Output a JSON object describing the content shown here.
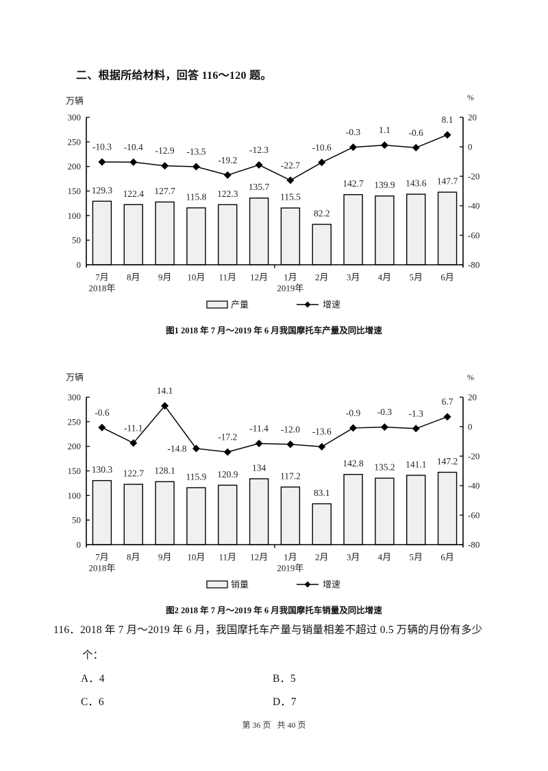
{
  "section_heading": "二、根据所给材料，回答 116～120 题。",
  "chart_data": [
    {
      "type": "bar",
      "combo": "bar+line",
      "title": "图1   2018 年 7 月～2019 年 6 月我国摩托车产量及同比增速",
      "categories": [
        "7月",
        "8月",
        "9月",
        "10月",
        "11月",
        "12月",
        "1月",
        "2月",
        "3月",
        "4月",
        "5月",
        "6月"
      ],
      "year_labels": [
        {
          "index": 0,
          "label": "2018年"
        },
        {
          "index": 6,
          "label": "2019年"
        }
      ],
      "ylabel": "万辆",
      "ylim": [
        0,
        300
      ],
      "yticks": [
        0,
        50,
        100,
        150,
        200,
        250,
        300
      ],
      "y2label": "%",
      "y2lim": [
        -80,
        20
      ],
      "y2ticks": [
        -80,
        -60,
        -40,
        -20,
        0,
        20
      ],
      "grid": false,
      "legend_position": "bottom",
      "series": [
        {
          "name": "产量",
          "type": "bar",
          "axis": "left",
          "values": [
            129.3,
            122.4,
            127.7,
            115.8,
            122.3,
            135.7,
            115.5,
            82.2,
            142.7,
            139.9,
            143.6,
            147.7
          ],
          "labels": [
            "129.3",
            "122.4",
            "127.7",
            "115.8",
            "122.3",
            "135.7",
            "115.5",
            "82.2",
            "142.7",
            "139.9",
            "143.6",
            "147.7"
          ]
        },
        {
          "name": "增速",
          "type": "line",
          "axis": "right",
          "values": [
            -10.3,
            -10.4,
            -12.9,
            -13.5,
            -19.2,
            -12.3,
            -22.7,
            -10.6,
            -0.3,
            1.1,
            -0.6,
            8.1
          ],
          "labels": [
            "-10.3",
            "-10.4",
            "-12.9",
            "-13.5",
            "-19.2",
            "-12.3",
            "-22.7",
            "-10.6",
            "-0.3",
            "1.1",
            "-0.6",
            "8.1"
          ]
        }
      ]
    },
    {
      "type": "bar",
      "combo": "bar+line",
      "title": "图2   2018 年 7 月～2019 年 6 月我国摩托车销量及同比增速",
      "categories": [
        "7月",
        "8月",
        "9月",
        "10月",
        "11月",
        "12月",
        "1月",
        "2月",
        "3月",
        "4月",
        "5月",
        "6月"
      ],
      "year_labels": [
        {
          "index": 0,
          "label": "2018年"
        },
        {
          "index": 6,
          "label": "2019年"
        }
      ],
      "ylabel": "万辆",
      "ylim": [
        0,
        300
      ],
      "yticks": [
        0,
        50,
        100,
        150,
        200,
        250,
        300
      ],
      "y2label": "%",
      "y2lim": [
        -80,
        20
      ],
      "y2ticks": [
        -80,
        -60,
        -40,
        -20,
        0,
        20
      ],
      "grid": false,
      "legend_position": "bottom",
      "series": [
        {
          "name": "销量",
          "type": "bar",
          "axis": "left",
          "values": [
            130.3,
            122.7,
            128.1,
            115.9,
            120.9,
            134,
            117.2,
            83.1,
            142.8,
            135.2,
            141.1,
            147.2
          ],
          "labels": [
            "130.3",
            "122.7",
            "128.1",
            "115.9",
            "120.9",
            "134",
            "117.2",
            "83.1",
            "142.8",
            "135.2",
            "141.1",
            "147.2"
          ]
        },
        {
          "name": "增速",
          "type": "line",
          "axis": "right",
          "values": [
            -0.6,
            -11.1,
            14.1,
            -14.8,
            -17.2,
            -11.4,
            -12.0,
            -13.6,
            -0.9,
            -0.3,
            -1.3,
            6.7
          ],
          "labels": [
            "-0.6",
            "-11.1",
            "14.1",
            "-14.8",
            "-17.2",
            "-11.4",
            "-12.0",
            "-13.6",
            "-0.9",
            "-0.3",
            "-1.3",
            "6.7"
          ]
        }
      ]
    }
  ],
  "question": {
    "text": "116．2018 年 7 月～2019 年 6 月，我国摩托车产量与销量相差不超过 0.5 万辆的月份有多少",
    "text_cont": "个：",
    "options": [
      {
        "label": "A．4"
      },
      {
        "label": "B．5"
      },
      {
        "label": "C．6"
      },
      {
        "label": "D．7"
      }
    ]
  },
  "footer": "第 36 页   共 40 页",
  "colors": {
    "bar_fill": "#f0f0f0",
    "bar_stroke": "#000000",
    "line": "#000000",
    "text": "#222222"
  }
}
